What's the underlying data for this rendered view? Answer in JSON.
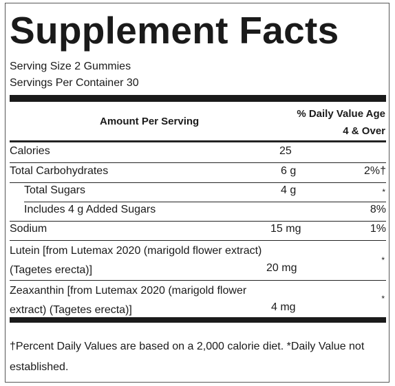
{
  "label": {
    "title": "Supplement Facts",
    "serving_size": "Serving Size 2 Gummies",
    "servings_per_container": "Servings Per Container 30",
    "header_amount": "Amount Per Serving",
    "header_dv_line1": "% Daily Value Age",
    "header_dv_line2": "4 & Over",
    "rows": [
      {
        "name": "Calories",
        "amount": "25",
        "dv": ""
      },
      {
        "name": "Total Carbohydrates",
        "amount": "6 g",
        "dv": "2%†"
      },
      {
        "name": "Total Sugars",
        "amount": "4 g",
        "dv": "*"
      },
      {
        "name": "Includes 4 g Added Sugars",
        "amount": "",
        "dv": "8%"
      },
      {
        "name": "Sodium",
        "amount": "15 mg",
        "dv": "1%"
      },
      {
        "name_line1": "Lutein [from Lutemax 2020 (marigold flower extract)",
        "name_line2": "(Tagetes erecta)]",
        "amount": "20 mg",
        "dv": "*"
      },
      {
        "name_line1": "Zeaxanthin [from Lutemax 2020 (marigold flower",
        "name_line2": "extract) (Tagetes erecta)]",
        "amount": "4 mg",
        "dv": "*"
      }
    ],
    "footnote": "†Percent Daily Values are based on a 2,000 calorie diet. *Daily Value not established."
  }
}
